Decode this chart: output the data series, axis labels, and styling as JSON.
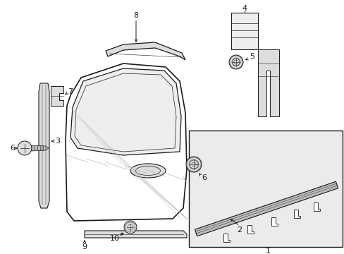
{
  "bg_color": "#ffffff",
  "line_color": "#1a1a1a",
  "gray1": "#bbbbbb",
  "gray2": "#dddddd",
  "gray3": "#eeeeee",
  "box_fill": "#ebebeb"
}
